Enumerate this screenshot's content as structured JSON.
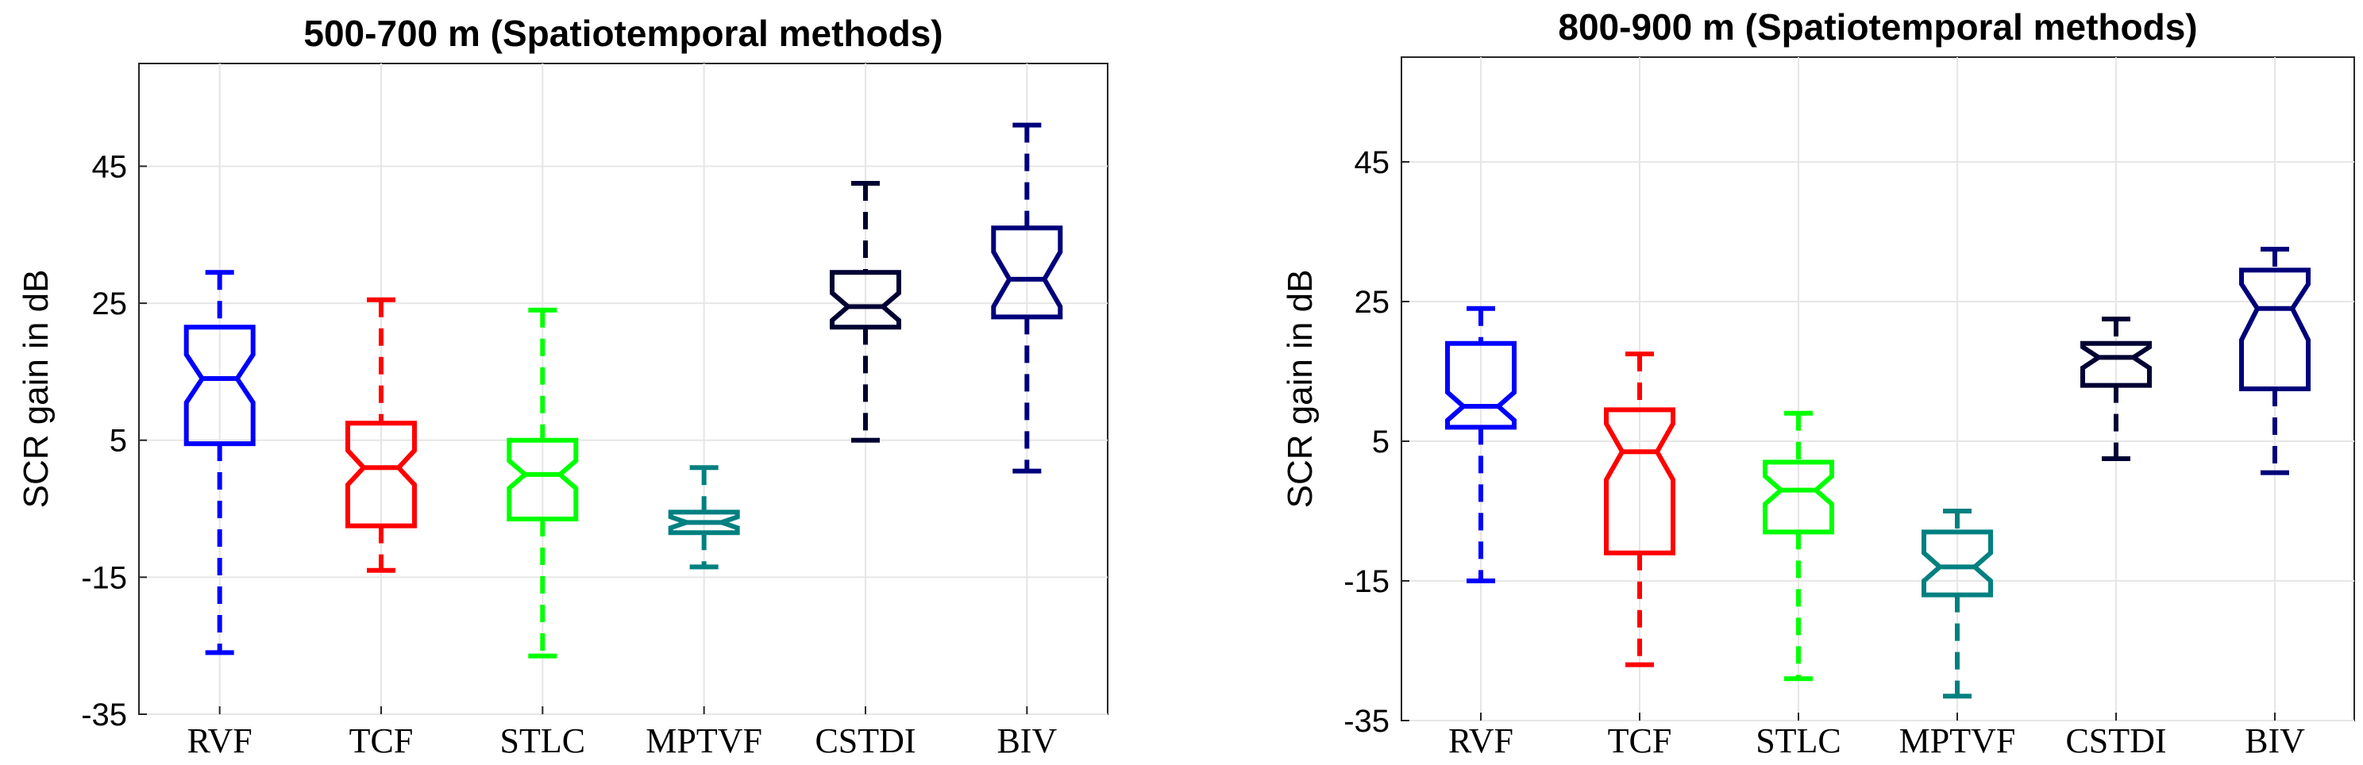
{
  "chart_data": [
    {
      "type": "box",
      "title": "500-700 m (Spatiotemporal methods)",
      "ylabel": "SCR gain in dB",
      "xlabel": "",
      "ylim": [
        -35,
        60
      ],
      "yticks": [
        -35,
        -15,
        5,
        25,
        45
      ],
      "grid": true,
      "notched": true,
      "categories": [
        "RVF",
        "TCF",
        "STLC",
        "MPTVF",
        "CSTDI",
        "BIV"
      ],
      "colors": [
        "#0000ff",
        "#ff0000",
        "#00ff00",
        "#008080",
        "#000033",
        "#00007a"
      ],
      "boxes": [
        {
          "whisker_low": -26,
          "q1": 4.5,
          "median": 14,
          "q3": 21.5,
          "whisker_high": 29.5,
          "notch_low": 10.5,
          "notch_high": 17.5
        },
        {
          "whisker_low": -14,
          "q1": -7.5,
          "median": 1,
          "q3": 7.5,
          "whisker_high": 25.5,
          "notch_low": -1.5,
          "notch_high": 3.5
        },
        {
          "whisker_low": -26.5,
          "q1": -6.5,
          "median": 0,
          "q3": 5,
          "whisker_high": 24,
          "notch_low": -2,
          "notch_high": 2
        },
        {
          "whisker_low": -13.5,
          "q1": -8.5,
          "median": -7,
          "q3": -5.5,
          "whisker_high": 1,
          "notch_low": -7.8,
          "notch_high": -6.2
        },
        {
          "whisker_low": 5,
          "q1": 21.5,
          "median": 24.5,
          "q3": 29.5,
          "whisker_high": 42.5,
          "notch_low": 22.5,
          "notch_high": 26.5
        },
        {
          "whisker_low": 0.5,
          "q1": 23,
          "median": 28.5,
          "q3": 36,
          "whisker_high": 51,
          "notch_low": 24.5,
          "notch_high": 32.5
        }
      ]
    },
    {
      "type": "box",
      "title": "800-900 m (Spatiotemporal methods)",
      "ylabel": "SCR gain in dB",
      "xlabel": "",
      "ylim": [
        -35,
        60
      ],
      "yticks": [
        -35,
        -15,
        5,
        25,
        45
      ],
      "grid": true,
      "notched": true,
      "categories": [
        "RVF",
        "TCF",
        "STLC",
        "MPTVF",
        "CSTDI",
        "BIV"
      ],
      "colors": [
        "#0000ff",
        "#ff0000",
        "#00ff00",
        "#008080",
        "#000033",
        "#00007a"
      ],
      "boxes": [
        {
          "whisker_low": -15,
          "q1": 7,
          "median": 10,
          "q3": 19,
          "whisker_high": 24,
          "notch_low": 8,
          "notch_high": 12
        },
        {
          "whisker_low": -27,
          "q1": -11,
          "median": 3.5,
          "q3": 9.5,
          "whisker_high": 17.5,
          "notch_low": -0.5,
          "notch_high": 7.5
        },
        {
          "whisker_low": -29,
          "q1": -8,
          "median": -2,
          "q3": 2,
          "whisker_high": 9,
          "notch_low": -4,
          "notch_high": 0
        },
        {
          "whisker_low": -31.5,
          "q1": -17,
          "median": -13,
          "q3": -8,
          "whisker_high": -5,
          "notch_low": -15,
          "notch_high": -11
        },
        {
          "whisker_low": 2.5,
          "q1": 13,
          "median": 17,
          "q3": 19,
          "whisker_high": 22.5,
          "notch_low": 15.5,
          "notch_high": 18.5
        },
        {
          "whisker_low": 0.5,
          "q1": 12.5,
          "median": 24,
          "q3": 29.5,
          "whisker_high": 32.5,
          "notch_low": 19.5,
          "notch_high": 27.5
        }
      ]
    }
  ]
}
